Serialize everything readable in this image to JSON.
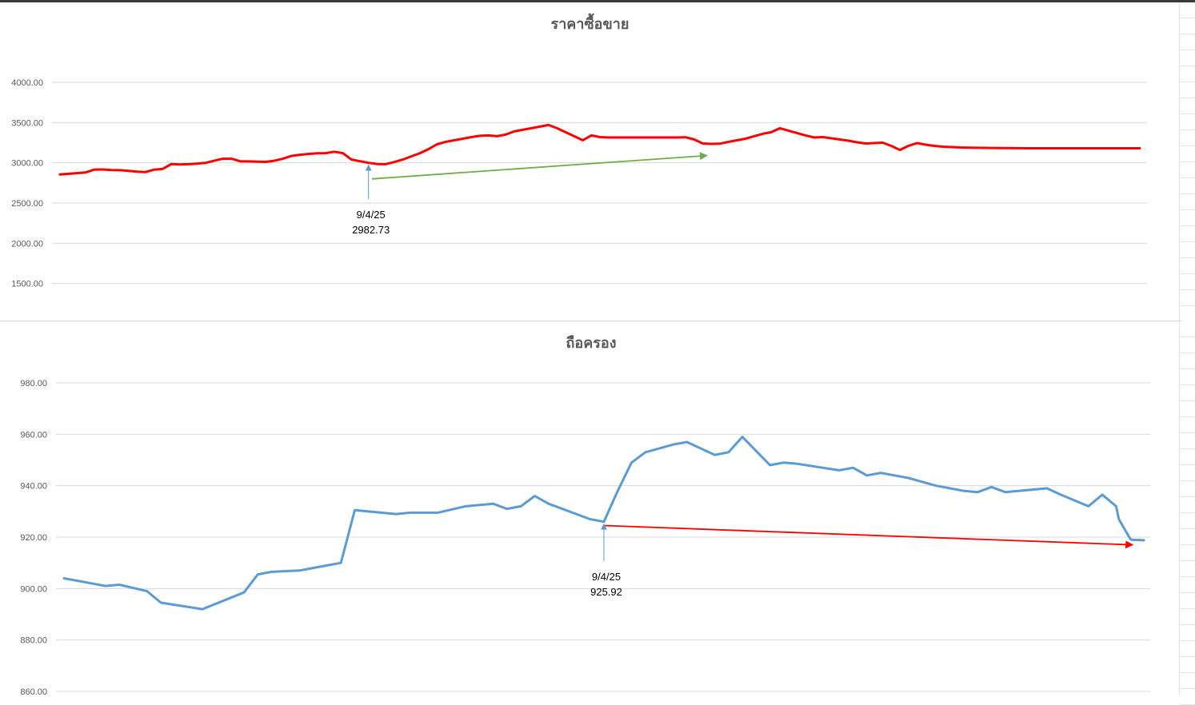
{
  "colors": {
    "price_line": "#ff0000",
    "price_trend": "#70ad47",
    "holding_line": "#5b9bd5",
    "holding_trend": "#ff0000",
    "annotation_arrow": "#5b9bd5",
    "grid": "#d9d9d9",
    "tick_text": "#595959"
  },
  "chart_data": [
    {
      "type": "line",
      "title": "ราคาซื้อขาย",
      "xlabel": "",
      "ylabel": "",
      "ylim": [
        1000,
        4000
      ],
      "yticks": [
        "4000.00",
        "3500.00",
        "3000.00",
        "2500.00",
        "2000.00",
        "1500.00"
      ],
      "grid": true,
      "legend": "none",
      "series": [
        {
          "x": [
            0,
            3,
            4,
            5,
            6,
            7,
            8,
            9,
            10,
            11,
            12,
            13,
            14,
            15,
            16,
            17,
            18,
            19,
            20,
            21,
            22,
            23,
            24,
            25,
            26,
            27,
            28,
            29,
            30,
            31,
            32,
            33,
            34,
            35,
            36,
            37,
            38,
            39,
            40,
            41,
            42,
            43,
            44,
            45,
            46,
            47,
            48,
            49,
            50,
            51,
            52,
            53,
            54,
            55,
            56,
            57,
            58,
            59,
            60,
            61,
            62,
            63,
            64,
            65,
            66,
            67,
            68,
            69,
            70,
            71,
            72,
            73,
            74,
            75,
            76,
            77,
            78,
            79,
            80,
            81,
            82,
            83,
            84,
            85,
            86,
            87,
            88,
            89,
            90,
            91,
            92,
            93,
            94,
            95,
            96,
            97,
            98,
            99,
            100,
            101,
            102,
            103,
            104,
            105,
            106,
            107,
            108,
            109,
            110,
            111,
            112,
            113,
            114,
            115,
            116,
            117,
            118,
            119,
            120,
            121,
            122,
            123,
            124,
            125,
            126
          ],
          "values": [
            2855,
            2880,
            2915,
            2917,
            2910,
            2908,
            2900,
            2890,
            2885,
            2915,
            2925,
            2985,
            2980,
            2983,
            2990,
            3000,
            3025,
            3050,
            3050,
            3020,
            3018,
            3015,
            3012,
            3025,
            3050,
            3085,
            3100,
            3110,
            3118,
            3120,
            3138,
            3120,
            3040,
            3020,
            3000,
            2985,
            2982.73,
            3010,
            3040,
            3080,
            3120,
            3170,
            3230,
            3260,
            3280,
            3300,
            3320,
            3335,
            3340,
            3330,
            3350,
            3390,
            3410,
            3430,
            3450,
            3470,
            3430,
            3380,
            3330,
            3280,
            3340,
            3320,
            3315,
            3315,
            3315,
            3315,
            3315,
            3315,
            3315,
            3315,
            3315,
            3318,
            3290,
            3240,
            3235,
            3237,
            3260,
            3280,
            3300,
            3330,
            3360,
            3380,
            3430,
            3400,
            3370,
            3340,
            3315,
            3320,
            3305,
            3290,
            3275,
            3255,
            3240,
            3245,
            3250,
            3210,
            3160,
            3210,
            3245,
            3225,
            3210,
            3200,
            3195,
            3190,
            3188,
            3186,
            3185,
            3184,
            3183,
            3182,
            3181,
            3180,
            3180,
            3180,
            3180,
            3180,
            3180,
            3180,
            3180,
            3180,
            3180,
            3180,
            3180,
            3180,
            3180
          ]
        }
      ],
      "trend_arrow": {
        "from": [
          36.4,
          2800
        ],
        "to": [
          75.5,
          3090
        ]
      },
      "annotation": {
        "x": 36,
        "date": "9/4/25",
        "value": "2982.73"
      }
    },
    {
      "type": "line",
      "title": "ถือครอง",
      "xlabel": "",
      "ylabel": "",
      "ylim": [
        860,
        980
      ],
      "yticks": [
        "980.00",
        "960.00",
        "940.00",
        "920.00",
        "900.00",
        "880.00",
        "860.00"
      ],
      "grid": true,
      "legend": "none",
      "series": [
        {
          "x": [
            0,
            3,
            4,
            6,
            7,
            10,
            13,
            14,
            15,
            17,
            19,
            20,
            21,
            24,
            25,
            27,
            29,
            31,
            32,
            33,
            34,
            35,
            38,
            39,
            40,
            41,
            42,
            44,
            45,
            47,
            48,
            49,
            51,
            52,
            53,
            56,
            57,
            58,
            59,
            60,
            61,
            63,
            65,
            66,
            67,
            68,
            69,
            71,
            72,
            74,
            75,
            76,
            76.2,
            77,
            77.1,
            78
          ],
          "values": [
            904,
            901,
            901.5,
            899,
            894.5,
            892,
            898.5,
            905.5,
            906.5,
            907,
            909,
            910,
            930.5,
            929,
            929.5,
            929.5,
            932,
            933,
            931,
            932,
            936,
            933,
            927,
            926,
            938,
            949,
            953,
            956,
            957,
            952,
            953,
            959,
            948,
            949,
            948.5,
            946,
            947,
            944,
            945,
            944,
            943,
            940,
            938,
            937.5,
            939.5,
            937.5,
            938,
            939,
            936.5,
            932,
            936.5,
            932,
            927,
            919.5,
            919,
            918.8
          ]
        }
      ],
      "trend_arrow": {
        "from": [
          39.0,
          924.5
        ],
        "to": [
          77.2,
          917
        ]
      },
      "annotation": {
        "x": 39,
        "date": "9/4/25",
        "value": "925.92"
      }
    }
  ]
}
